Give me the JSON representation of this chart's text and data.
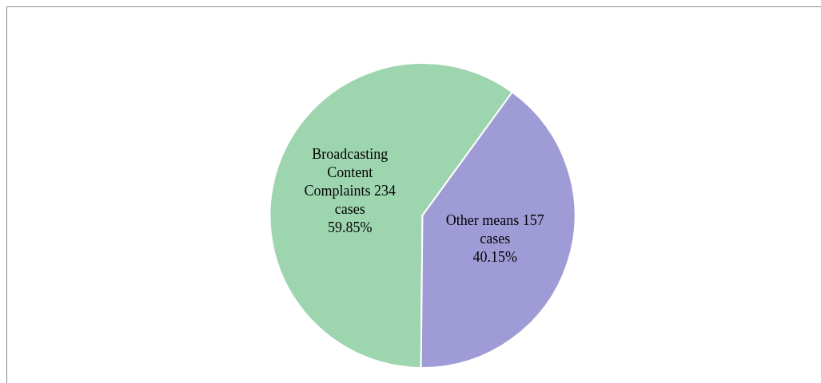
{
  "chart_data": {
    "type": "pie",
    "categories": [
      "Broadcasting Content Complaints",
      "Other means"
    ],
    "values": [
      234,
      157
    ],
    "colors": [
      "#9dd5ae",
      "#9e9bd6"
    ],
    "value_labels": [
      "234 cases\n59.85%",
      "157 cases\n40.15%"
    ],
    "legend": false
  }
}
